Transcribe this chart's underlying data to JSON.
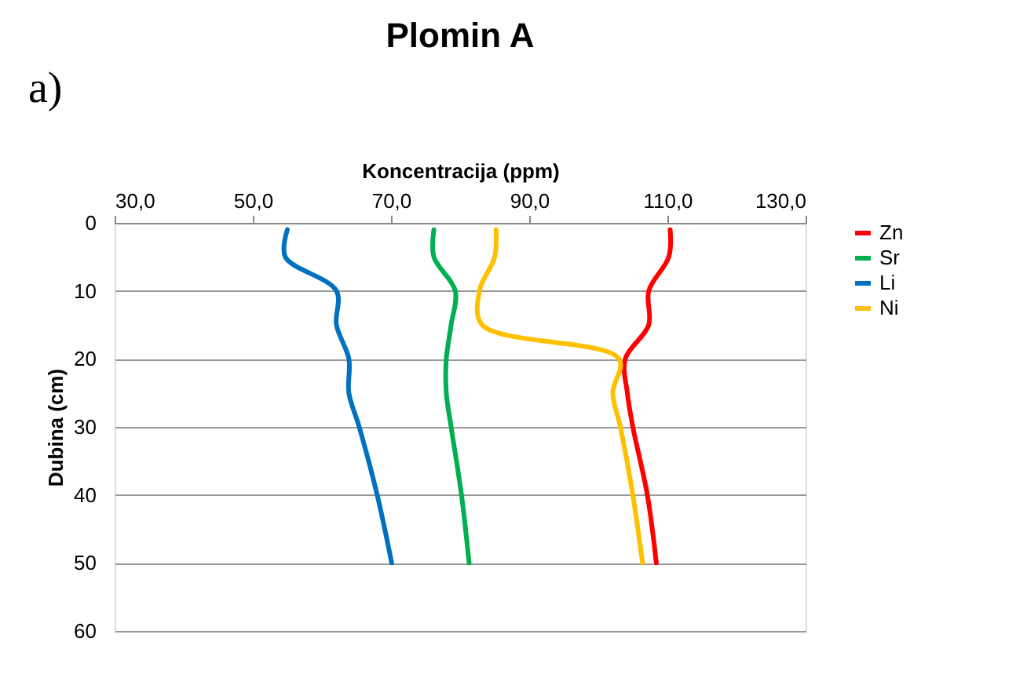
{
  "chart_data": {
    "type": "line",
    "title": "Plomin A",
    "annotations": [
      "a)"
    ],
    "xlabel": "Koncentracija (ppm)",
    "ylabel": "Dubina (cm)",
    "series": [
      {
        "name": "Zn",
        "color": "#ff0000",
        "x": [
          110.4,
          110.2,
          107.3,
          107.3,
          103.9,
          104.2,
          105,
          107.1,
          108.4
        ],
        "values": [
          1,
          5,
          10,
          15,
          20,
          25,
          30,
          40,
          50
        ]
      },
      {
        "name": "Sr",
        "color": "#00b050",
        "x": [
          76.2,
          76.2,
          79.3,
          78.7,
          78,
          78,
          78.7,
          80.2,
          81.3
        ],
        "values": [
          1,
          5,
          10,
          15,
          20,
          25,
          30,
          40,
          50
        ]
      },
      {
        "name": "Li",
        "color": "#0070c0",
        "x": [
          55,
          54.7,
          62.1,
          62.1,
          63.9,
          63.9,
          65.4,
          68,
          70.1
        ],
        "values": [
          1,
          5,
          10,
          15,
          20,
          25,
          30,
          40,
          50
        ]
      },
      {
        "name": "Ni",
        "color": "#ffc000",
        "x": [
          85.2,
          85,
          82.8,
          83.2,
          103,
          102.1,
          103.2,
          105,
          106.4
        ],
        "values": [
          1,
          5,
          10,
          15,
          20,
          25,
          30,
          40,
          50
        ]
      }
    ],
    "xlim": [
      30,
      130
    ],
    "xticks": [
      {
        "value": 30,
        "label": "30,0"
      },
      {
        "value": 50,
        "label": "50,0"
      },
      {
        "value": 70,
        "label": "70,0"
      },
      {
        "value": 90,
        "label": "90,0"
      },
      {
        "value": 110,
        "label": "110,0"
      },
      {
        "value": 130,
        "label": "130,0"
      }
    ],
    "ylim": [
      60,
      0
    ],
    "yticks": [
      0,
      10,
      20,
      30,
      40,
      50,
      60
    ],
    "grid": "y",
    "legend": "right",
    "marker": "none",
    "line_style": "solid"
  }
}
